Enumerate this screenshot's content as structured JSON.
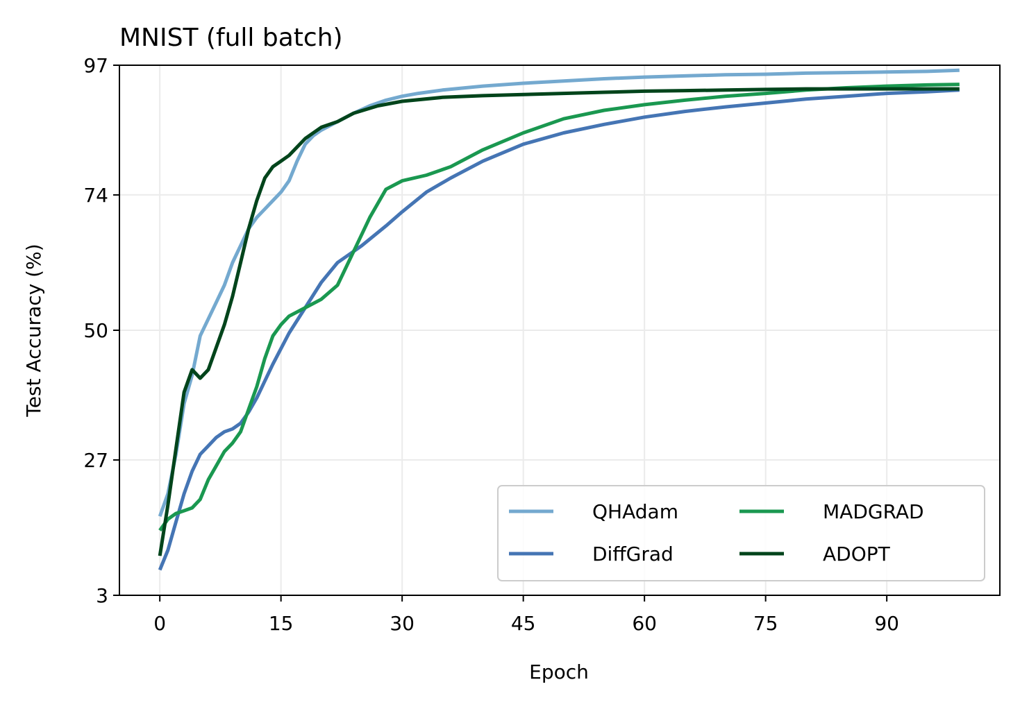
{
  "chart_data": {
    "type": "line",
    "title": "MNIST (full batch)",
    "xlabel": "Epoch",
    "ylabel": "Test Accuracy (%)",
    "xlim": [
      -5,
      104
    ],
    "ylim": [
      3,
      97
    ],
    "xticks": [
      0,
      15,
      30,
      45,
      60,
      75,
      90
    ],
    "yticks": [
      3,
      27,
      50,
      74,
      97
    ],
    "grid": true,
    "legend_position": "lower-right",
    "legend_columns": 2,
    "series": [
      {
        "name": "QHAdam",
        "color": "#74a9cf",
        "points": [
          [
            0,
            17
          ],
          [
            1,
            21
          ],
          [
            2,
            28
          ],
          [
            3,
            37
          ],
          [
            4,
            42
          ],
          [
            5,
            49
          ],
          [
            6,
            52
          ],
          [
            7,
            55
          ],
          [
            8,
            58
          ],
          [
            9,
            62
          ],
          [
            10,
            65
          ],
          [
            11,
            68
          ],
          [
            12,
            70
          ],
          [
            13,
            71.5
          ],
          [
            14,
            73
          ],
          [
            15,
            74.5
          ],
          [
            16,
            76.5
          ],
          [
            17,
            80
          ],
          [
            18,
            83
          ],
          [
            19,
            84.5
          ],
          [
            20,
            85.5
          ],
          [
            22,
            87
          ],
          [
            24,
            88.5
          ],
          [
            26,
            89.8
          ],
          [
            28,
            90.8
          ],
          [
            30,
            91.5
          ],
          [
            32,
            92
          ],
          [
            35,
            92.6
          ],
          [
            40,
            93.3
          ],
          [
            45,
            93.8
          ],
          [
            50,
            94.2
          ],
          [
            55,
            94.6
          ],
          [
            60,
            94.9
          ],
          [
            65,
            95.1
          ],
          [
            70,
            95.3
          ],
          [
            75,
            95.4
          ],
          [
            80,
            95.6
          ],
          [
            85,
            95.7
          ],
          [
            90,
            95.8
          ],
          [
            95,
            95.9
          ],
          [
            99,
            96.1
          ]
        ]
      },
      {
        "name": "DiffGrad",
        "color": "#4575b4",
        "points": [
          [
            0,
            7.5
          ],
          [
            1,
            11
          ],
          [
            2,
            16
          ],
          [
            3,
            21
          ],
          [
            4,
            25
          ],
          [
            5,
            28
          ],
          [
            6,
            29.5
          ],
          [
            7,
            31
          ],
          [
            8,
            32
          ],
          [
            9,
            32.5
          ],
          [
            10,
            33.5
          ],
          [
            11,
            35.5
          ],
          [
            12,
            38
          ],
          [
            14,
            44
          ],
          [
            16,
            49.5
          ],
          [
            18,
            54
          ],
          [
            20,
            58.5
          ],
          [
            22,
            62
          ],
          [
            25,
            65
          ],
          [
            28,
            68.5
          ],
          [
            30,
            71
          ],
          [
            33,
            74.5
          ],
          [
            36,
            77
          ],
          [
            40,
            80
          ],
          [
            45,
            83
          ],
          [
            50,
            85
          ],
          [
            55,
            86.5
          ],
          [
            60,
            87.8
          ],
          [
            65,
            88.8
          ],
          [
            70,
            89.6
          ],
          [
            75,
            90.3
          ],
          [
            80,
            91
          ],
          [
            85,
            91.5
          ],
          [
            90,
            92
          ],
          [
            95,
            92.3
          ],
          [
            99,
            92.6
          ]
        ]
      },
      {
        "name": "MADGRAD",
        "color": "#1a9850",
        "points": [
          [
            0,
            14.5
          ],
          [
            1,
            16.5
          ],
          [
            2,
            17.5
          ],
          [
            3,
            18
          ],
          [
            4,
            18.5
          ],
          [
            5,
            20
          ],
          [
            6,
            23.5
          ],
          [
            7,
            26
          ],
          [
            8,
            28.5
          ],
          [
            9,
            30
          ],
          [
            10,
            32
          ],
          [
            11,
            36
          ],
          [
            12,
            40
          ],
          [
            13,
            45
          ],
          [
            14,
            49
          ],
          [
            15,
            51
          ],
          [
            16,
            52.5
          ],
          [
            18,
            54
          ],
          [
            20,
            55.5
          ],
          [
            22,
            58
          ],
          [
            24,
            64
          ],
          [
            26,
            70
          ],
          [
            28,
            75
          ],
          [
            30,
            76.5
          ],
          [
            33,
            77.5
          ],
          [
            36,
            79
          ],
          [
            40,
            82
          ],
          [
            45,
            85
          ],
          [
            50,
            87.5
          ],
          [
            55,
            89
          ],
          [
            60,
            90
          ],
          [
            65,
            90.8
          ],
          [
            70,
            91.5
          ],
          [
            75,
            92
          ],
          [
            80,
            92.6
          ],
          [
            85,
            93
          ],
          [
            90,
            93.3
          ],
          [
            95,
            93.5
          ],
          [
            99,
            93.6
          ]
        ]
      },
      {
        "name": "ADOPT",
        "color": "#00441b",
        "points": [
          [
            0,
            10
          ],
          [
            1,
            19
          ],
          [
            2,
            29
          ],
          [
            3,
            39
          ],
          [
            4,
            43
          ],
          [
            5,
            41.5
          ],
          [
            6,
            43
          ],
          [
            7,
            47
          ],
          [
            8,
            51
          ],
          [
            9,
            56
          ],
          [
            10,
            62
          ],
          [
            11,
            68
          ],
          [
            12,
            73
          ],
          [
            13,
            77
          ],
          [
            14,
            79
          ],
          [
            15,
            80
          ],
          [
            16,
            81
          ],
          [
            17,
            82.5
          ],
          [
            18,
            84
          ],
          [
            19,
            85
          ],
          [
            20,
            86
          ],
          [
            22,
            87
          ],
          [
            24,
            88.5
          ],
          [
            27,
            89.8
          ],
          [
            30,
            90.6
          ],
          [
            35,
            91.3
          ],
          [
            40,
            91.6
          ],
          [
            45,
            91.8
          ],
          [
            50,
            92
          ],
          [
            55,
            92.2
          ],
          [
            60,
            92.4
          ],
          [
            65,
            92.5
          ],
          [
            70,
            92.6
          ],
          [
            75,
            92.7
          ],
          [
            80,
            92.8
          ],
          [
            85,
            92.8
          ],
          [
            90,
            92.8
          ],
          [
            95,
            92.8
          ],
          [
            99,
            92.8
          ]
        ]
      }
    ]
  }
}
